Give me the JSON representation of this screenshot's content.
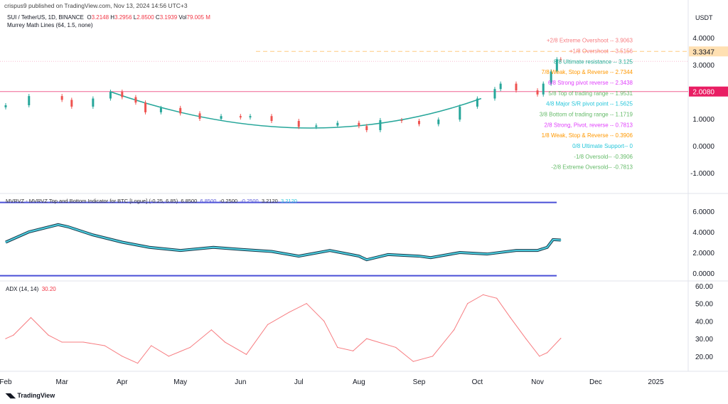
{
  "header": {
    "published": "crispus9 published on TradingView.com, Nov 13, 2024 14:56 UTC+3"
  },
  "legend": {
    "symbol": "SUI / TetherUS, 1D, BINANCE",
    "o_label": "O",
    "o": "3.2148",
    "h_label": "H",
    "h": "3.2956",
    "l_label": "L",
    "l": "2.8500",
    "c_label": "C",
    "c": "3.1939",
    "vol_label": "Vol",
    "vol": "79.005 M",
    "indicator": "Murrey Math Lines (64, 1.5, none)"
  },
  "currency": "USDT",
  "murrey": [
    {
      "label": "+2/8 Extreme Overshoot --  3.9063",
      "value": 3.9063,
      "color": "#f77c80"
    },
    {
      "label": "+1/8 Overshoot --  3.5156",
      "value": 3.5156,
      "color": "#f77c80"
    },
    {
      "label": "8/8 Ultimate resistance --  3.125",
      "value": 3.125,
      "color": "#22ab94"
    },
    {
      "label": "7/8 Weak, Stop & Reverse --  2.7344",
      "value": 2.7344,
      "color": "#ff9800"
    },
    {
      "label": "6/8 Strong pivot reverse --  2.3438",
      "value": 2.3438,
      "color": "#e040fb"
    },
    {
      "label": "5/8 Top of trading range --  1.9531",
      "value": 1.9531,
      "color": "#66bb6a"
    },
    {
      "label": "4/8 Major S/R pivot point --  1.5625",
      "value": 1.5625,
      "color": "#26c6da"
    },
    {
      "label": "3/8 Bottom of trading range --  1.1719",
      "value": 1.1719,
      "color": "#66bb6a"
    },
    {
      "label": "2/8 Strong, Pivot, reverse --  0.7813",
      "value": 0.7813,
      "color": "#e040fb"
    },
    {
      "label": "1/8 Weak, Stop & Reverse --  0.3906",
      "value": 0.3906,
      "color": "#ff9800"
    },
    {
      "label": "0/8 Ultimate Support--  0",
      "value": 0,
      "color": "#26c6da"
    },
    {
      "label": "-1/8 Oversold--  -0.3906",
      "value": -0.3906,
      "color": "#66bb6a"
    },
    {
      "label": "-2/8 Extreme Oversold--  -0.7813",
      "value": -0.7813,
      "color": "#66bb6a"
    }
  ],
  "price_badges": {
    "last": "3.3347",
    "last_color": "#ffe0b2",
    "line": "2.0080",
    "line_color": "#e91e63"
  },
  "mvrvz_legend": {
    "title": "MVRVZ - MVRVZ Top and Bottom Indicator for BTC [Logue] (-0.25, 6.85)",
    "v1": "6.8500",
    "v1b": "6.8500",
    "v2": "-0.2500",
    "v2b": "-0.2500",
    "v3": "3.2120",
    "v3b": "3.2120"
  },
  "adx_legend": {
    "title": "ADX (14, 14)",
    "value": "30.20"
  },
  "footer": {
    "brand": "TradingView"
  },
  "chart_data": [
    {
      "type": "candlestick",
      "pane": "price",
      "ylim": [
        -1.3,
        4.3
      ],
      "yticks": [
        "4.0000",
        "3.0000",
        "1.0000",
        "0.0000",
        "-1.0000"
      ],
      "ytick_values": [
        4,
        3,
        1,
        0,
        -1
      ],
      "dates": [
        "2024-02-01",
        "2024-02-13",
        "2024-03-01",
        "2024-03-06",
        "2024-03-17",
        "2024-03-26",
        "2024-04-01",
        "2024-04-08",
        "2024-04-13",
        "2024-04-21",
        "2024-05-01",
        "2024-05-11",
        "2024-05-22",
        "2024-06-01",
        "2024-06-06",
        "2024-06-17",
        "2024-07-01",
        "2024-07-10",
        "2024-07-21",
        "2024-08-01",
        "2024-08-05",
        "2024-08-12",
        "2024-08-23",
        "2024-09-01",
        "2024-09-11",
        "2024-09-22",
        "2024-10-01",
        "2024-10-10",
        "2024-10-13",
        "2024-10-21",
        "2024-11-01",
        "2024-11-04",
        "2024-11-08",
        "2024-11-11",
        "2024-11-13"
      ],
      "close": [
        1.5,
        1.84,
        1.7,
        1.45,
        1.75,
        2.0,
        1.8,
        1.6,
        1.24,
        1.4,
        1.2,
        1.0,
        1.1,
        1.05,
        1.1,
        0.92,
        0.7,
        0.75,
        0.85,
        0.73,
        0.58,
        0.95,
        0.92,
        0.8,
        0.97,
        1.45,
        1.75,
        2.1,
        2.3,
        2.05,
        1.9,
        2.3,
        2.75,
        3.2,
        3.19
      ],
      "horizontal_lines": [
        2.008,
        3.3347
      ]
    },
    {
      "type": "line",
      "pane": "mvrvz",
      "ylim": [
        -0.3,
        7
      ],
      "yticks": [
        "6.0000",
        "4.0000",
        "2.0000",
        "0.0000"
      ],
      "ytick_values": [
        6,
        4,
        2,
        0
      ],
      "bands": [
        6.85,
        -0.25
      ],
      "dates": [
        "2024-02-01",
        "2024-02-13",
        "2024-02-28",
        "2024-03-04",
        "2024-03-17",
        "2024-04-01",
        "2024-04-15",
        "2024-05-01",
        "2024-05-18",
        "2024-06-01",
        "2024-06-17",
        "2024-07-01",
        "2024-07-17",
        "2024-08-01",
        "2024-08-05",
        "2024-08-16",
        "2024-09-01",
        "2024-09-07",
        "2024-09-22",
        "2024-10-06",
        "2024-10-21",
        "2024-11-01",
        "2024-11-06",
        "2024-11-09",
        "2024-11-13"
      ],
      "values": [
        3.0,
        4.0,
        4.7,
        4.5,
        3.7,
        3.0,
        2.5,
        2.2,
        2.5,
        2.3,
        2.1,
        1.65,
        2.2,
        1.65,
        1.3,
        1.8,
        1.65,
        1.5,
        2.0,
        1.85,
        2.2,
        2.2,
        2.5,
        3.25,
        3.21
      ]
    },
    {
      "type": "line",
      "pane": "adx",
      "ylim": [
        12,
        60
      ],
      "yticks": [
        "60.00",
        "50.00",
        "40.00",
        "30.00",
        "20.00"
      ],
      "ytick_values": [
        60,
        50,
        40,
        30,
        20
      ],
      "dates": [
        "2024-02-01",
        "2024-02-05",
        "2024-02-14",
        "2024-02-23",
        "2024-03-01",
        "2024-03-12",
        "2024-03-23",
        "2024-04-01",
        "2024-04-09",
        "2024-04-16",
        "2024-04-25",
        "2024-05-06",
        "2024-05-17",
        "2024-05-24",
        "2024-06-04",
        "2024-06-15",
        "2024-06-26",
        "2024-07-05",
        "2024-07-14",
        "2024-07-21",
        "2024-07-29",
        "2024-08-05",
        "2024-08-20",
        "2024-08-29",
        "2024-09-08",
        "2024-09-19",
        "2024-09-26",
        "2024-10-04",
        "2024-10-11",
        "2024-10-18",
        "2024-10-26",
        "2024-11-02",
        "2024-11-06",
        "2024-11-13"
      ],
      "values": [
        30,
        32,
        42,
        32,
        28,
        28,
        26,
        20,
        16,
        26,
        20,
        25,
        35,
        28,
        21,
        38,
        45,
        50,
        40,
        25,
        23,
        30,
        25,
        17,
        20,
        35,
        50,
        55,
        53,
        42,
        30,
        20,
        22,
        30.2
      ]
    },
    {
      "type": "axis",
      "xticks": [
        "Feb",
        "Mar",
        "Apr",
        "May",
        "Jun",
        "Jul",
        "Aug",
        "Sep",
        "Oct",
        "Nov",
        "Dec",
        "2025"
      ]
    }
  ]
}
